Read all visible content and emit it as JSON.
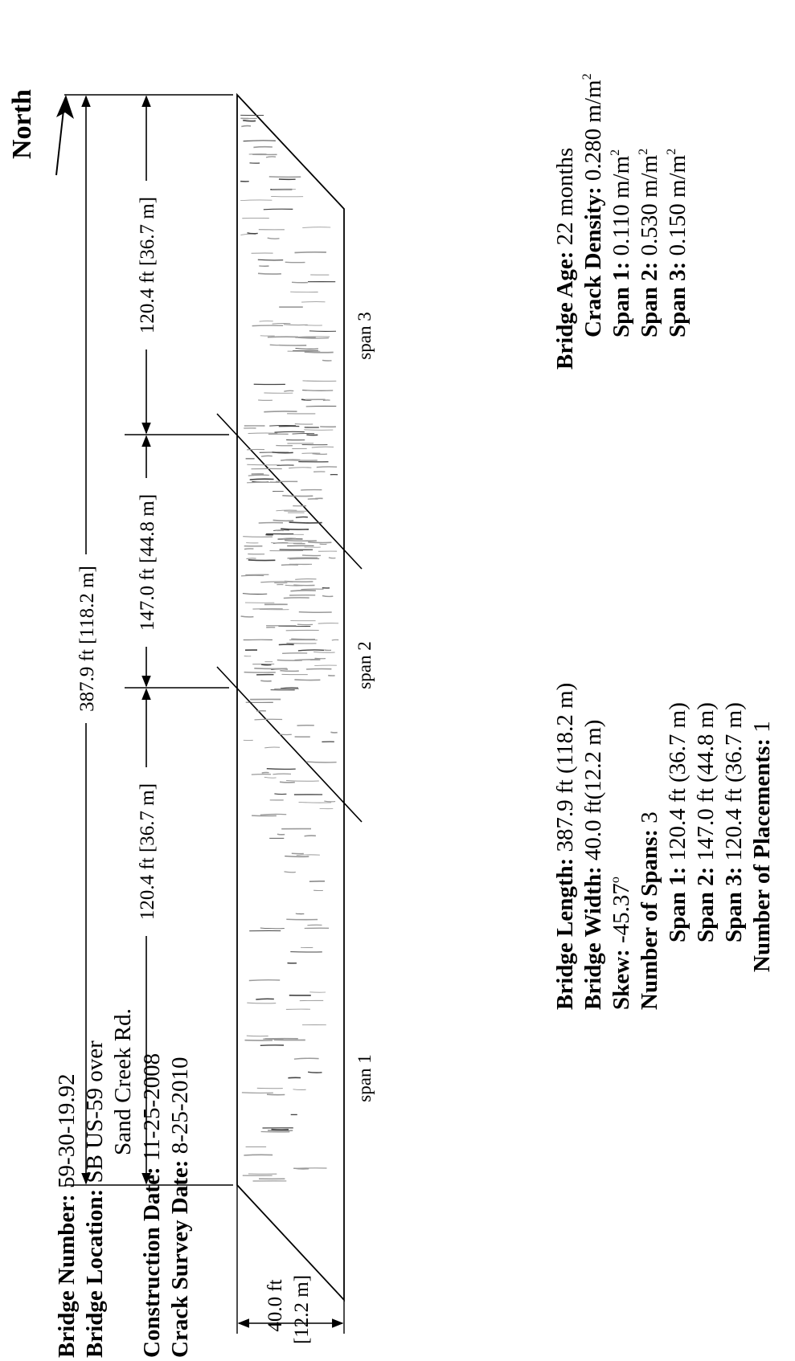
{
  "north_label": "North",
  "dimensions": {
    "total": "387.9 ft [118.2 m]",
    "span1": "120.4 ft [36.7 m]",
    "span2": "147.0 ft [44.8 m]",
    "span3": "120.4 ft [36.7 m]",
    "width_ft": "40.0 ft",
    "width_m": "[12.2 m]"
  },
  "span_labels": [
    "span 1",
    "span 2",
    "span 3"
  ],
  "info_left": {
    "bridge_number": {
      "label": "Bridge Number:",
      "value": " 59-30-19.92"
    },
    "bridge_location": {
      "label": "Bridge Location:",
      "value": " SB US-59 over",
      "value_cont": "Sand Creek Rd."
    },
    "construction_date": {
      "label": "Construction Date:",
      "value": " 11-25-2008"
    },
    "crack_survey_date": {
      "label": "Crack Survey Date:",
      "value": " 8-25-2010"
    }
  },
  "info_middle": {
    "bridge_length": {
      "label": "Bridge Length:",
      "value": " 387.9 ft (118.2 m)"
    },
    "bridge_width": {
      "label": "Bridge Width:",
      "value": " 40.0 ft(12.2 m)"
    },
    "skew": {
      "label": "Skew:",
      "value": " -45.37",
      "unit": "o"
    },
    "number_of_spans": {
      "label": "Number of Spans:",
      "value": " 3"
    },
    "span1": {
      "label": "Span 1:",
      "value": " 120.4 ft (36.7 m)"
    },
    "span2": {
      "label": "Span 2:",
      "value": " 147.0 ft (44.8 m)"
    },
    "span3": {
      "label": "Span 3:",
      "value": " 120.4 ft (36.7 m)"
    },
    "number_of_placements": {
      "label": "Number of Placements:",
      "value": " 1"
    }
  },
  "info_right": {
    "bridge_age": {
      "label": "Bridge Age:",
      "value": " 22 months"
    },
    "crack_density": {
      "label": "Crack Density:",
      "value": " 0.280 m/m",
      "sup": "2"
    },
    "span1": {
      "label": "Span 1:",
      "value": " 0.110 m/m",
      "sup": "2"
    },
    "span2": {
      "label": "Span 2:",
      "value": " 0.530 m/m",
      "sup": "2"
    },
    "span3": {
      "label": "Span 3:",
      "value": " 0.150 m/m",
      "sup": "2"
    }
  }
}
